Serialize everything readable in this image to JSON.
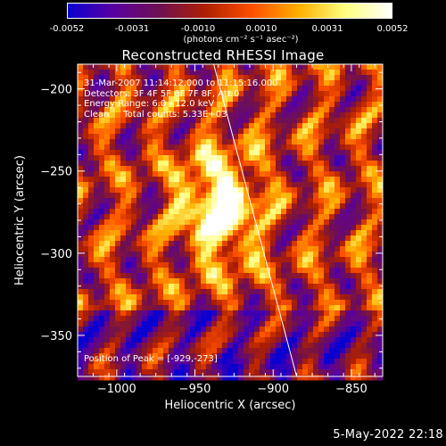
{
  "colorbar": {
    "ticks": [
      "-0.0052",
      "-0.0031",
      "-0.0010",
      "0.0010",
      "0.0031",
      "0.0052"
    ],
    "unit_label": "(photons cm⁻² s⁻¹ asec⁻²)",
    "colors": [
      "#0a00d0",
      "#5a00a0",
      "#701050",
      "#b02000",
      "#ff5000",
      "#ffb000",
      "#ffff80",
      "#ffffff"
    ]
  },
  "chart_data": {
    "type": "heatmap",
    "title": "Reconstructed RHESSI Image",
    "xlabel": "Heliocentric X (arcsec)",
    "ylabel": "Heliocentric Y (arcsec)",
    "xlim": [
      -1025,
      -830
    ],
    "ylim": [
      -375,
      -185
    ],
    "xticks": [
      -1000,
      -950,
      -900,
      -850
    ],
    "yticks": [
      -200,
      -250,
      -300,
      -350
    ],
    "xtick_labels": [
      "−1000",
      "−950",
      "−900",
      "−850"
    ],
    "ytick_labels": [
      "−200",
      "−250",
      "−300",
      "−350"
    ],
    "peak": {
      "x": -929,
      "y": -273
    },
    "limb_line": [
      [
        -938,
        -185
      ],
      [
        -885,
        -375
      ]
    ]
  },
  "info": {
    "line1": "31-Mar-2007 11:14:12.000 to 11:15:16.000",
    "line2": "Detectors: 3F 4F 5F 6F 7F 8F, Att 0",
    "line3": "Energy Range: 6.0 - 12.0 keV",
    "line4": "Clean     Total counts: 5.33E+03"
  },
  "peak_text": "Position of Peak = [-929,-273]",
  "timestamp": "5-May-2022 22:18"
}
